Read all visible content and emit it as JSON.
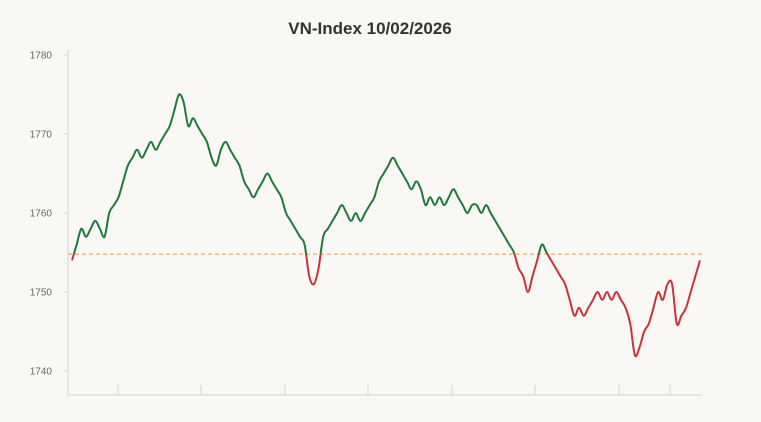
{
  "chart_data": {
    "type": "line",
    "title": "VN-Index 10/02/2026",
    "xlabel": "",
    "ylabel": "",
    "ylim": [
      1738,
      1781
    ],
    "yticks": [
      1740,
      1750,
      1760,
      1770,
      1780
    ],
    "reference_value": 1754.8,
    "grid": false,
    "legend": "none",
    "colors": {
      "above_reference": "#1e7a3a",
      "below_reference": "#c8323c",
      "reference_line": "#e0944a",
      "axis": "#cfd6e0",
      "background": "#faf8f5"
    },
    "series": [
      {
        "values": [
          1754,
          1756,
          1758,
          1757,
          1758,
          1759,
          1758,
          1757,
          1760,
          1761,
          1762,
          1764,
          1766,
          1767,
          1768,
          1767,
          1768,
          1769,
          1768,
          1769,
          1770,
          1771,
          1773,
          1775,
          1774,
          1771,
          1772,
          1771,
          1770,
          1769,
          1767,
          1766,
          1768,
          1769,
          1768,
          1767,
          1766,
          1764,
          1763,
          1762,
          1763,
          1764,
          1765,
          1764,
          1763,
          1762,
          1760,
          1759,
          1758,
          1757,
          1756,
          1752,
          1751,
          1753,
          1757,
          1758,
          1759,
          1760,
          1761,
          1760,
          1759,
          1760,
          1759,
          1760,
          1761,
          1762,
          1764,
          1765,
          1766,
          1767,
          1766,
          1765,
          1764,
          1763,
          1764,
          1763,
          1761,
          1762,
          1761,
          1762,
          1761,
          1762,
          1763,
          1762,
          1761,
          1760,
          1761,
          1761,
          1760,
          1761,
          1760,
          1759,
          1758,
          1757,
          1756,
          1755,
          1753,
          1752,
          1750,
          1752,
          1754,
          1756,
          1755,
          1754,
          1753,
          1752,
          1751,
          1749,
          1747,
          1748,
          1747,
          1748,
          1749,
          1750,
          1749,
          1750,
          1749,
          1750,
          1749,
          1748,
          1746,
          1742,
          1743,
          1745,
          1746,
          1748,
          1750,
          1749,
          1751,
          1751,
          1746,
          1747,
          1748,
          1750,
          1752,
          1754
        ]
      }
    ]
  }
}
